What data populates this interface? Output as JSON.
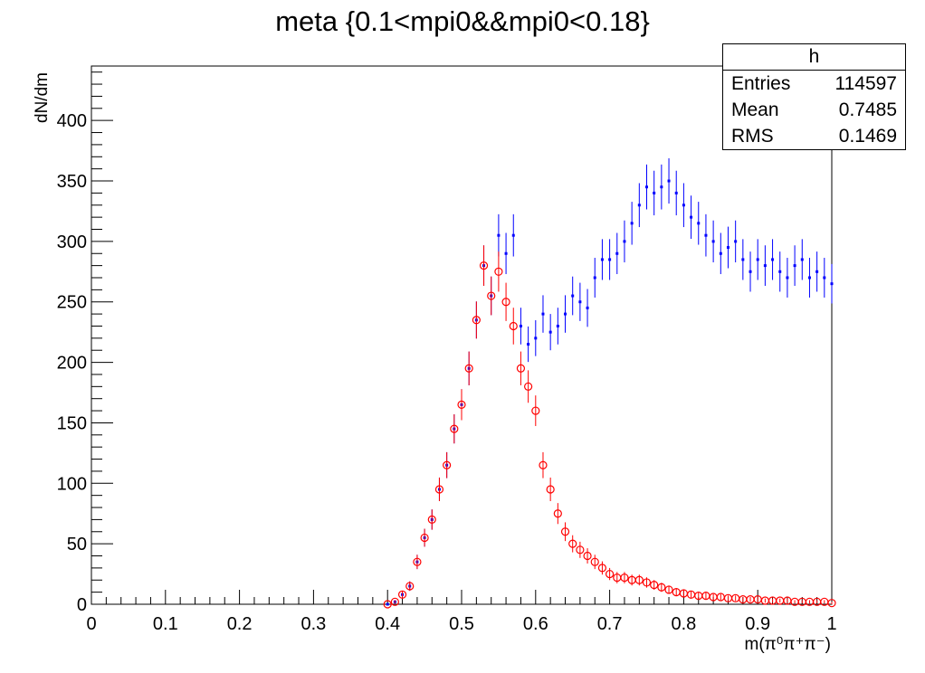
{
  "chart_data": {
    "type": "scatter",
    "title": "meta {0.1<mpi0&&mpi0<0.18}",
    "xlabel": "m(π⁰π⁺π⁻)",
    "ylabel": "dN/dm",
    "xlim": [
      0,
      1
    ],
    "ylim": [
      0,
      445
    ],
    "x_ticks": [
      0,
      0.1,
      0.2,
      0.3,
      0.4,
      0.5,
      0.6,
      0.7,
      0.8,
      0.9,
      1
    ],
    "x_tick_labels": [
      "0",
      "0.1",
      "0.2",
      "0.3",
      "0.4",
      "0.5",
      "0.6",
      "0.7",
      "0.8",
      "0.9",
      "1"
    ],
    "y_ticks": [
      0,
      50,
      100,
      150,
      200,
      250,
      300,
      350,
      400
    ],
    "y_tick_labels": [
      "0",
      "50",
      "100",
      "150",
      "200",
      "250",
      "300",
      "350",
      "400"
    ],
    "grid": false,
    "legend": "none",
    "series": [
      {
        "color": "#0000ff",
        "marker": "dot",
        "x": [
          0.4,
          0.41,
          0.42,
          0.43,
          0.44,
          0.45,
          0.46,
          0.47,
          0.48,
          0.49,
          0.5,
          0.51,
          0.52,
          0.53,
          0.54,
          0.55,
          0.56,
          0.57,
          0.58,
          0.59,
          0.6,
          0.61,
          0.62,
          0.63,
          0.64,
          0.65,
          0.66,
          0.67,
          0.68,
          0.69,
          0.7,
          0.71,
          0.72,
          0.73,
          0.74,
          0.75,
          0.76,
          0.77,
          0.78,
          0.79,
          0.8,
          0.81,
          0.82,
          0.83,
          0.84,
          0.85,
          0.86,
          0.87,
          0.88,
          0.89,
          0.9,
          0.91,
          0.92,
          0.93,
          0.94,
          0.95,
          0.96,
          0.97,
          0.98,
          0.99,
          1.0
        ],
        "y": [
          0,
          2,
          8,
          15,
          35,
          55,
          70,
          95,
          115,
          145,
          165,
          195,
          235,
          280,
          255,
          305,
          290,
          305,
          230,
          215,
          220,
          240,
          225,
          230,
          240,
          255,
          250,
          245,
          270,
          285,
          285,
          290,
          300,
          315,
          330,
          345,
          340,
          345,
          350,
          340,
          330,
          320,
          315,
          305,
          300,
          290,
          295,
          300,
          285,
          275,
          285,
          280,
          285,
          275,
          270,
          280,
          285,
          270,
          275,
          270,
          265
        ]
      },
      {
        "color": "#ff0000",
        "marker": "open-circle",
        "x": [
          0.4,
          0.41,
          0.42,
          0.43,
          0.44,
          0.45,
          0.46,
          0.47,
          0.48,
          0.49,
          0.5,
          0.51,
          0.52,
          0.53,
          0.54,
          0.55,
          0.56,
          0.57,
          0.58,
          0.59,
          0.6,
          0.61,
          0.62,
          0.63,
          0.64,
          0.65,
          0.66,
          0.67,
          0.68,
          0.69,
          0.7,
          0.71,
          0.72,
          0.73,
          0.74,
          0.75,
          0.76,
          0.77,
          0.78,
          0.79,
          0.8,
          0.81,
          0.82,
          0.83,
          0.84,
          0.85,
          0.86,
          0.87,
          0.88,
          0.89,
          0.9,
          0.91,
          0.92,
          0.93,
          0.94,
          0.95,
          0.96,
          0.97,
          0.98,
          0.99,
          1.0
        ],
        "y": [
          0,
          2,
          8,
          15,
          35,
          55,
          70,
          95,
          115,
          145,
          165,
          195,
          235,
          280,
          255,
          275,
          250,
          230,
          195,
          180,
          160,
          115,
          95,
          75,
          60,
          50,
          45,
          40,
          35,
          30,
          25,
          22,
          22,
          20,
          20,
          18,
          16,
          14,
          12,
          10,
          9,
          8,
          7,
          7,
          6,
          6,
          5,
          5,
          4,
          4,
          4,
          3,
          3,
          3,
          3,
          2,
          2,
          2,
          2,
          2,
          1
        ]
      }
    ]
  },
  "stats_box": {
    "name": "h",
    "entries_label": "Entries",
    "entries_value": "114597",
    "mean_label": "Mean",
    "mean_value": "0.7485",
    "rms_label": "RMS",
    "rms_value": "0.1469"
  }
}
